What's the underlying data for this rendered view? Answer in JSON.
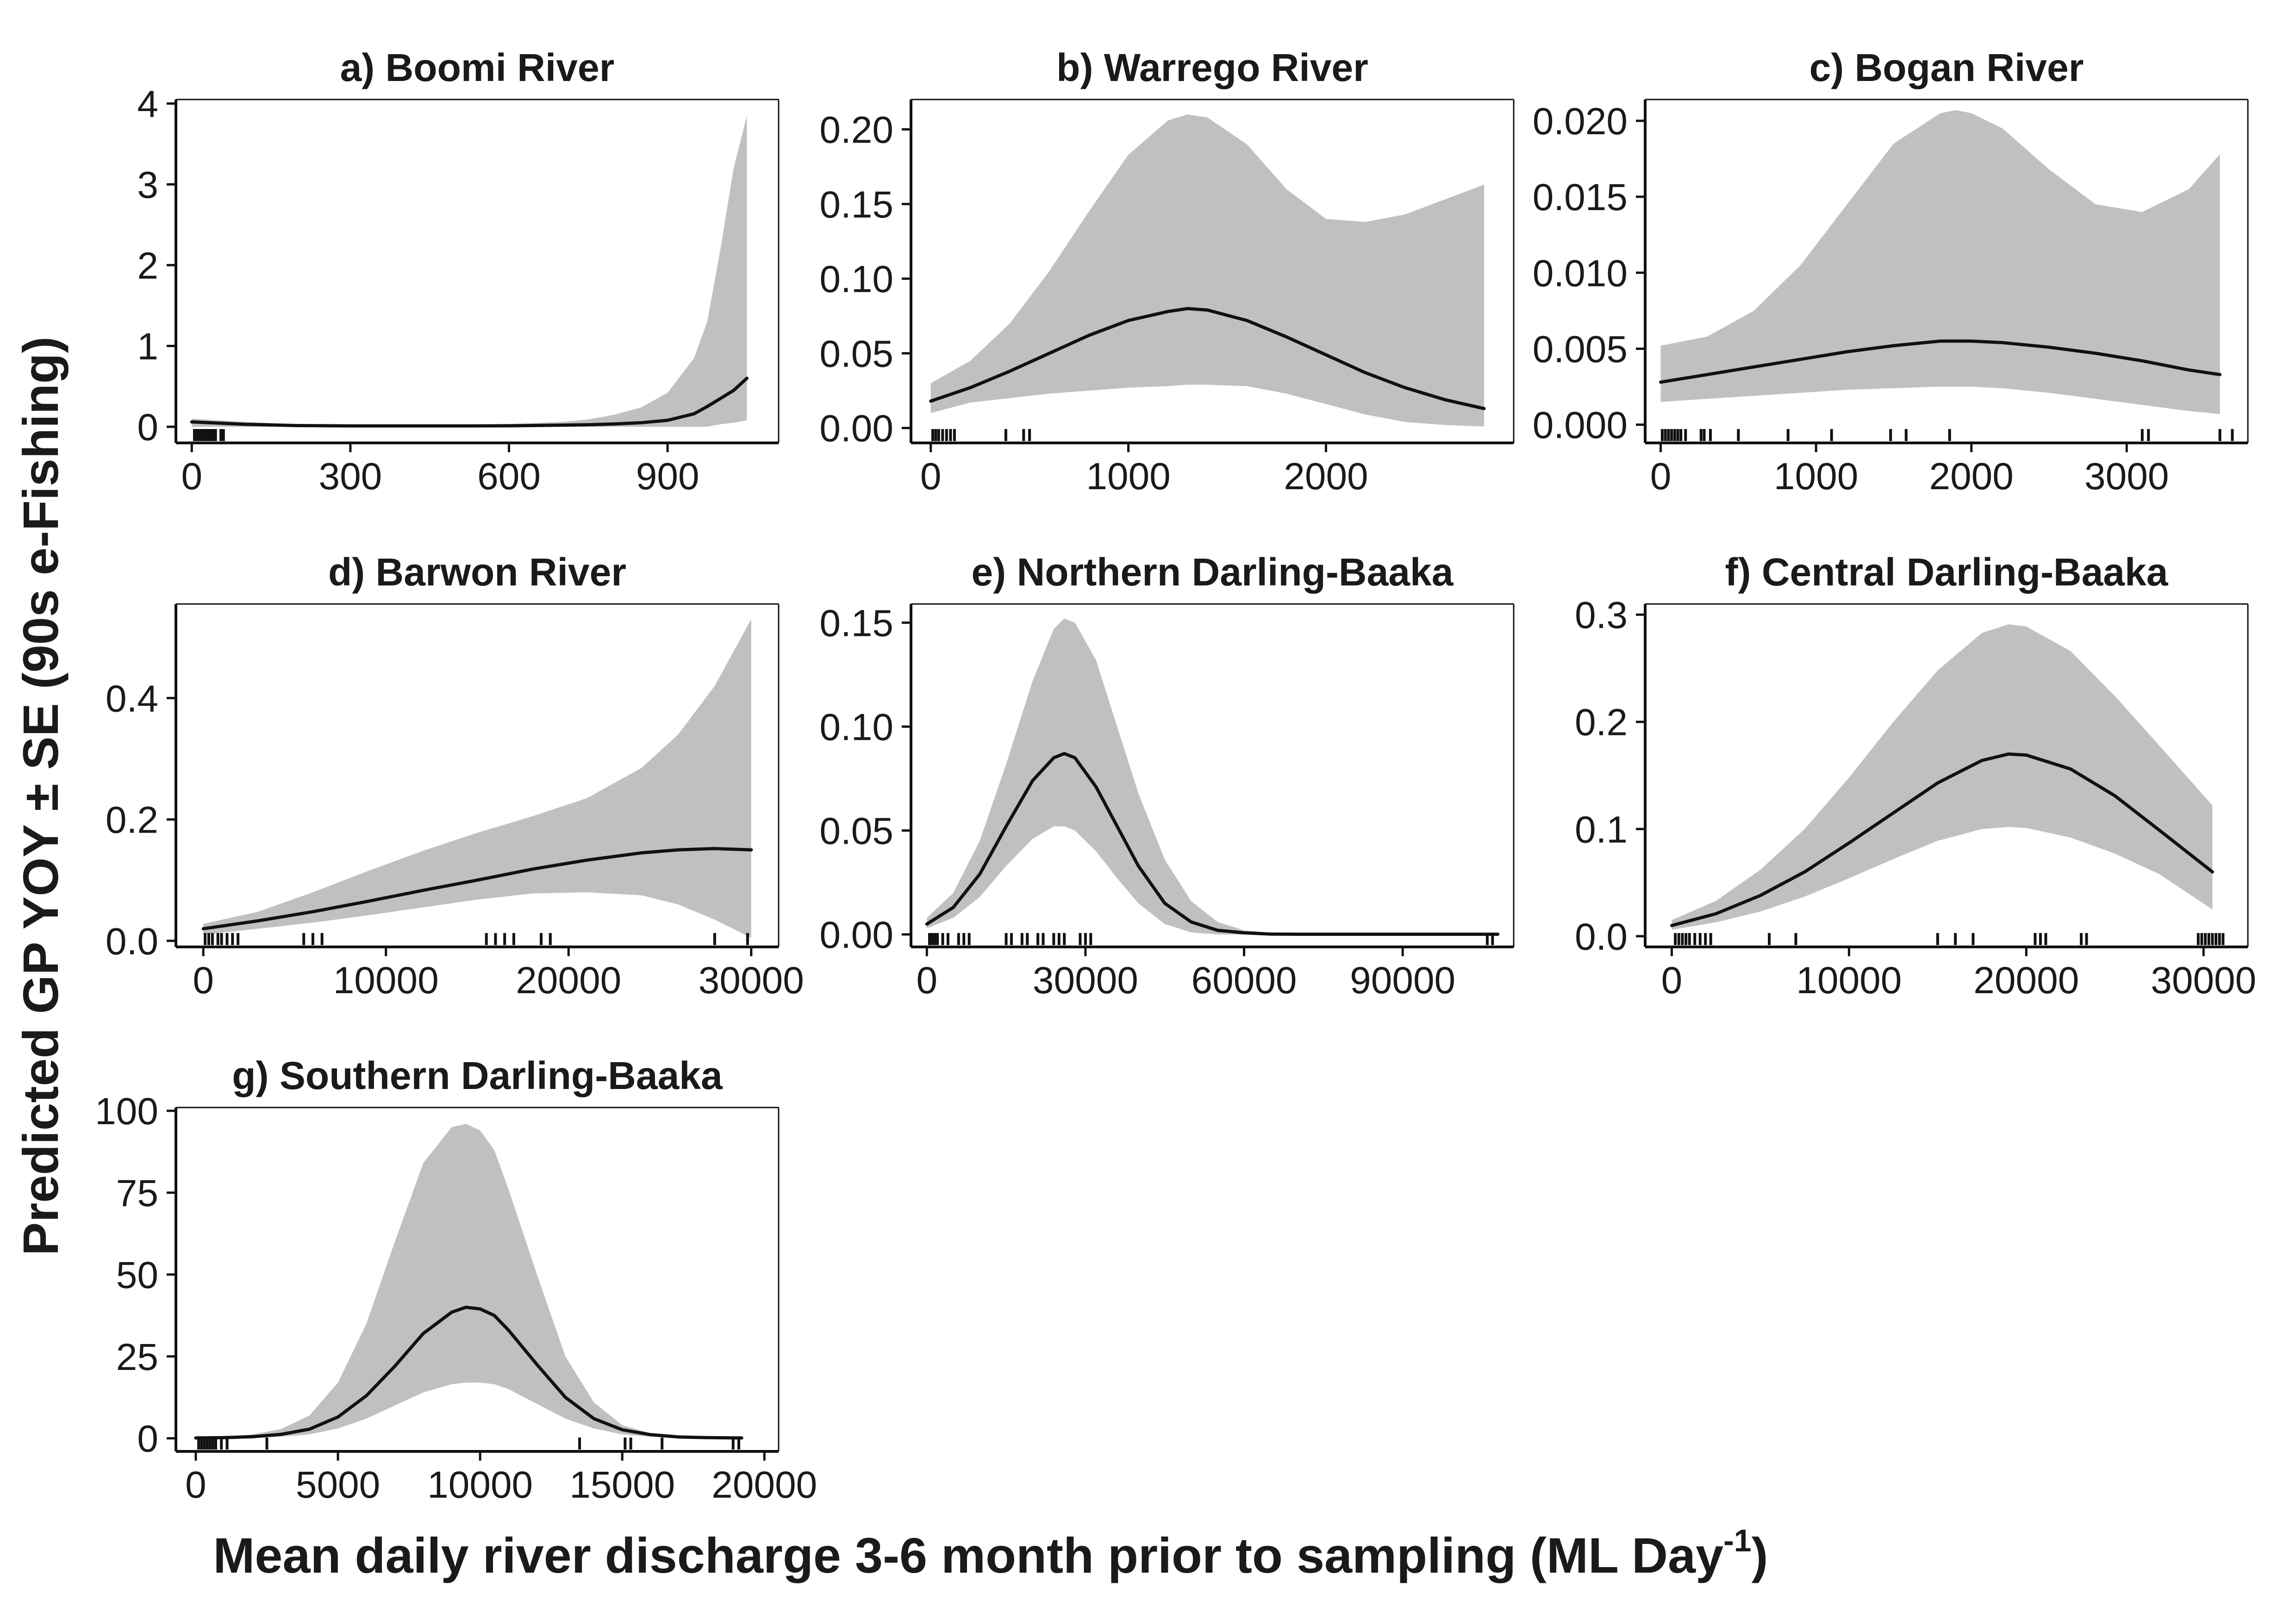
{
  "figure": {
    "ylabel": "Predicted GP YOY ± SE (90s e-Fishing)",
    "xlabel_main": "Mean daily river discharge 3-6 month prior to sampling (ML Day",
    "xlabel_sup": "-1",
    "xlabel_end": ")"
  },
  "colors": {
    "band": "#c0c0c0",
    "line": "#111111",
    "axis": "#111111"
  },
  "chart_data": [
    {
      "type": "area",
      "title": "a) Boomi River",
      "xlim": [
        -30,
        1110
      ],
      "ylim": [
        -0.2,
        4.05
      ],
      "xticks": [
        0,
        300,
        600,
        900
      ],
      "xtick_labels": [
        "0",
        "300",
        "600",
        "900"
      ],
      "yticks": [
        0,
        1,
        2,
        3,
        4
      ],
      "ytick_labels": [
        "0",
        "1",
        "2",
        "3",
        "4"
      ],
      "x": [
        0,
        100,
        200,
        300,
        400,
        500,
        600,
        700,
        750,
        800,
        850,
        900,
        950,
        975,
        1000,
        1025,
        1050
      ],
      "y": [
        0.06,
        0.03,
        0.015,
        0.01,
        0.01,
        0.01,
        0.012,
        0.02,
        0.025,
        0.035,
        0.05,
        0.08,
        0.16,
        0.25,
        0.35,
        0.45,
        0.6
      ],
      "lower": [
        0,
        0,
        0,
        0,
        0,
        0,
        0,
        0,
        0,
        0,
        0,
        0,
        0,
        0,
        0.03,
        0.05,
        0.08
      ],
      "upper": [
        0.1,
        0.06,
        0.03,
        0.02,
        0.02,
        0.025,
        0.035,
        0.06,
        0.09,
        0.15,
        0.24,
        0.42,
        0.85,
        1.3,
        2.2,
        3.2,
        3.85
      ],
      "rug": [
        5,
        10,
        15,
        20,
        25,
        30,
        35,
        40,
        45,
        55,
        60
      ]
    },
    {
      "type": "area",
      "title": "b) Warrego River",
      "xlim": [
        -100,
        2950
      ],
      "ylim": [
        -0.01,
        0.22
      ],
      "xticks": [
        0,
        1000,
        2000
      ],
      "xtick_labels": [
        "0",
        "1000",
        "2000"
      ],
      "yticks": [
        0,
        0.05,
        0.1,
        0.15,
        0.2
      ],
      "ytick_labels": [
        "0.00",
        "0.05",
        "0.10",
        "0.15",
        "0.20"
      ],
      "x": [
        0,
        200,
        400,
        600,
        800,
        1000,
        1200,
        1300,
        1400,
        1600,
        1800,
        2000,
        2200,
        2400,
        2600,
        2800
      ],
      "y": [
        0.018,
        0.027,
        0.038,
        0.05,
        0.062,
        0.072,
        0.078,
        0.08,
        0.079,
        0.072,
        0.061,
        0.049,
        0.037,
        0.027,
        0.019,
        0.013
      ],
      "lower": [
        0.01,
        0.017,
        0.02,
        0.023,
        0.025,
        0.027,
        0.028,
        0.029,
        0.029,
        0.028,
        0.023,
        0.016,
        0.009,
        0.004,
        0.002,
        0.001
      ],
      "upper": [
        0.03,
        0.045,
        0.07,
        0.105,
        0.145,
        0.183,
        0.206,
        0.21,
        0.208,
        0.19,
        0.16,
        0.14,
        0.138,
        0.143,
        0.153,
        0.163
      ],
      "rug": [
        10,
        25,
        40,
        60,
        80,
        100,
        120,
        380,
        470,
        500
      ]
    },
    {
      "type": "area",
      "title": "c) Bogan River",
      "xlim": [
        -100,
        3780
      ],
      "ylim": [
        -0.0012,
        0.0214
      ],
      "xticks": [
        0,
        1000,
        2000,
        3000
      ],
      "xtick_labels": [
        "0",
        "1000",
        "2000",
        "3000"
      ],
      "yticks": [
        0,
        0.005,
        0.01,
        0.015,
        0.02
      ],
      "ytick_labels": [
        "0.000",
        "0.005",
        "0.010",
        "0.015",
        "0.020"
      ],
      "x": [
        0,
        300,
        600,
        900,
        1200,
        1500,
        1800,
        1900,
        2000,
        2200,
        2500,
        2800,
        3100,
        3400,
        3600
      ],
      "y": [
        0.0028,
        0.0033,
        0.0038,
        0.0043,
        0.0048,
        0.0052,
        0.0055,
        0.0055,
        0.0055,
        0.0054,
        0.0051,
        0.0047,
        0.0042,
        0.0036,
        0.0033
      ],
      "lower": [
        0.0015,
        0.0017,
        0.0019,
        0.0021,
        0.0023,
        0.0024,
        0.0025,
        0.0025,
        0.0025,
        0.0024,
        0.0021,
        0.0017,
        0.0013,
        0.0009,
        0.0007
      ],
      "upper": [
        0.0052,
        0.0058,
        0.0075,
        0.0105,
        0.0145,
        0.0185,
        0.0205,
        0.0207,
        0.0205,
        0.0195,
        0.0168,
        0.0145,
        0.014,
        0.0155,
        0.0178
      ],
      "rug": [
        10,
        30,
        50,
        70,
        90,
        110,
        130,
        160,
        260,
        280,
        320,
        500,
        820,
        1100,
        1480,
        1580,
        1860,
        3100,
        3140,
        3600,
        3680
      ]
    },
    {
      "type": "area",
      "title": "d) Barwon River",
      "xlim": [
        -1500,
        31500
      ],
      "ylim": [
        -0.01,
        0.555
      ],
      "xticks": [
        0,
        10000,
        20000,
        30000
      ],
      "xtick_labels": [
        "0",
        "10000",
        "20000",
        "30000"
      ],
      "yticks": [
        0,
        0.2,
        0.4
      ],
      "ytick_labels": [
        "0.0",
        "0.2",
        "0.4"
      ],
      "x": [
        0,
        3000,
        6000,
        9000,
        12000,
        15000,
        18000,
        21000,
        24000,
        26000,
        28000,
        30000
      ],
      "y": [
        0.02,
        0.033,
        0.048,
        0.065,
        0.083,
        0.1,
        0.118,
        0.133,
        0.145,
        0.15,
        0.152,
        0.15
      ],
      "lower": [
        0.01,
        0.02,
        0.03,
        0.042,
        0.055,
        0.068,
        0.078,
        0.08,
        0.075,
        0.06,
        0.035,
        0.005
      ],
      "upper": [
        0.028,
        0.048,
        0.08,
        0.115,
        0.148,
        0.178,
        0.205,
        0.235,
        0.285,
        0.34,
        0.42,
        0.53
      ],
      "rug": [
        100,
        300,
        500,
        800,
        1000,
        1300,
        1600,
        1900,
        5500,
        6000,
        6500,
        15500,
        16000,
        16500,
        17000,
        18500,
        19000,
        28000,
        29800
      ]
    },
    {
      "type": "area",
      "title": "e) Northern Darling-Baaka",
      "xlim": [
        -3000,
        111000
      ],
      "ylim": [
        -0.006,
        0.159
      ],
      "xticks": [
        0,
        30000,
        60000,
        90000
      ],
      "xtick_labels": [
        "0",
        "30000",
        "60000",
        "90000"
      ],
      "yticks": [
        0,
        0.05,
        0.1,
        0.15
      ],
      "ytick_labels": [
        "0.00",
        "0.05",
        "0.10",
        "0.15"
      ],
      "x": [
        0,
        5000,
        10000,
        15000,
        20000,
        24000,
        26000,
        28000,
        32000,
        36000,
        40000,
        45000,
        50000,
        55000,
        60000,
        65000,
        70000,
        80000,
        90000,
        100000,
        108000
      ],
      "y": [
        0.005,
        0.013,
        0.029,
        0.052,
        0.074,
        0.085,
        0.087,
        0.085,
        0.071,
        0.052,
        0.033,
        0.015,
        0.006,
        0.002,
        0.0008,
        0.0002,
        0.0001,
        0.0001,
        0.0001,
        0.0001,
        0.0001
      ],
      "lower": [
        0.003,
        0.008,
        0.018,
        0.033,
        0.046,
        0.052,
        0.052,
        0.05,
        0.04,
        0.027,
        0.015,
        0.005,
        0.001,
        0,
        0,
        0,
        0,
        0,
        0,
        0,
        0
      ],
      "upper": [
        0.008,
        0.02,
        0.045,
        0.082,
        0.122,
        0.147,
        0.152,
        0.15,
        0.132,
        0.1,
        0.068,
        0.036,
        0.016,
        0.006,
        0.002,
        0.0008,
        0.0003,
        0.0002,
        0.0002,
        0.0002,
        0.0002
      ],
      "rug": [
        500,
        1000,
        1500,
        2000,
        3000,
        4000,
        6000,
        7000,
        8000,
        15000,
        16000,
        18000,
        19000,
        21000,
        22000,
        24000,
        25000,
        26000,
        29000,
        30000,
        31000,
        106000,
        107000
      ]
    },
    {
      "type": "area",
      "title": "f) Central Darling-Baaka",
      "xlim": [
        -1500,
        32500
      ],
      "ylim": [
        -0.01,
        0.31
      ],
      "xticks": [
        0,
        10000,
        20000,
        30000
      ],
      "xtick_labels": [
        "0",
        "10000",
        "20000",
        "30000"
      ],
      "yticks": [
        0,
        0.1,
        0.2,
        0.3
      ],
      "ytick_labels": [
        "0.0",
        "0.1",
        "0.2",
        "0.3"
      ],
      "x": [
        0,
        2500,
        5000,
        7500,
        10000,
        12500,
        15000,
        17500,
        19000,
        20000,
        22500,
        25000,
        27500,
        30500
      ],
      "y": [
        0.01,
        0.021,
        0.038,
        0.06,
        0.087,
        0.115,
        0.143,
        0.164,
        0.17,
        0.169,
        0.156,
        0.131,
        0.099,
        0.06
      ],
      "lower": [
        0.006,
        0.013,
        0.023,
        0.037,
        0.054,
        0.072,
        0.089,
        0.1,
        0.102,
        0.101,
        0.092,
        0.077,
        0.058,
        0.025
      ],
      "upper": [
        0.015,
        0.033,
        0.062,
        0.1,
        0.148,
        0.2,
        0.248,
        0.283,
        0.291,
        0.289,
        0.266,
        0.224,
        0.178,
        0.122
      ],
      "rug": [
        200,
        400,
        600,
        800,
        1000,
        1300,
        1600,
        1900,
        2200,
        5500,
        7000,
        15000,
        16000,
        17000,
        20500,
        20800,
        21100,
        23100,
        23400,
        29700,
        29900,
        30100,
        30300,
        30500,
        30700,
        30900,
        31100
      ]
    },
    {
      "type": "area",
      "title": "g) Southern Darling-Baaka",
      "xlim": [
        -700,
        20500
      ],
      "ylim": [
        -4,
        101
      ],
      "xticks": [
        0,
        5000,
        10000,
        15000,
        20000
      ],
      "xtick_labels": [
        "0",
        "5000",
        "10000",
        "15000",
        "20000"
      ],
      "yticks": [
        0,
        25,
        50,
        75,
        100
      ],
      "ytick_labels": [
        "0",
        "25",
        "50",
        "75",
        "100"
      ],
      "x": [
        0,
        1000,
        2000,
        3000,
        4000,
        5000,
        6000,
        7000,
        8000,
        9000,
        9500,
        10000,
        10500,
        11000,
        12000,
        13000,
        14000,
        15000,
        16000,
        17000,
        18000,
        19200
      ],
      "y": [
        0.1,
        0.2,
        0.5,
        1.2,
        2.8,
        6.5,
        13,
        22,
        32,
        38.5,
        40,
        39.5,
        37.5,
        33,
        22.5,
        12.5,
        6,
        2.6,
        1.1,
        0.4,
        0.2,
        0.1
      ],
      "lower": [
        0,
        0.05,
        0.2,
        0.5,
        1.2,
        3,
        6,
        10,
        14,
        16.5,
        17,
        17,
        16.5,
        15,
        10.5,
        6,
        3,
        1.2,
        0.5,
        0.2,
        0.1,
        0.05
      ],
      "upper": [
        0.2,
        0.4,
        1.2,
        2.8,
        7,
        17,
        35,
        60,
        84,
        95,
        96,
        94,
        88,
        76,
        50,
        25,
        11,
        4,
        1.5,
        0.6,
        0.3,
        0.2
      ],
      "rug": [
        100,
        200,
        300,
        400,
        500,
        600,
        700,
        900,
        1100,
        2500,
        13500,
        15100,
        15300,
        16400,
        18900,
        19100
      ]
    }
  ]
}
